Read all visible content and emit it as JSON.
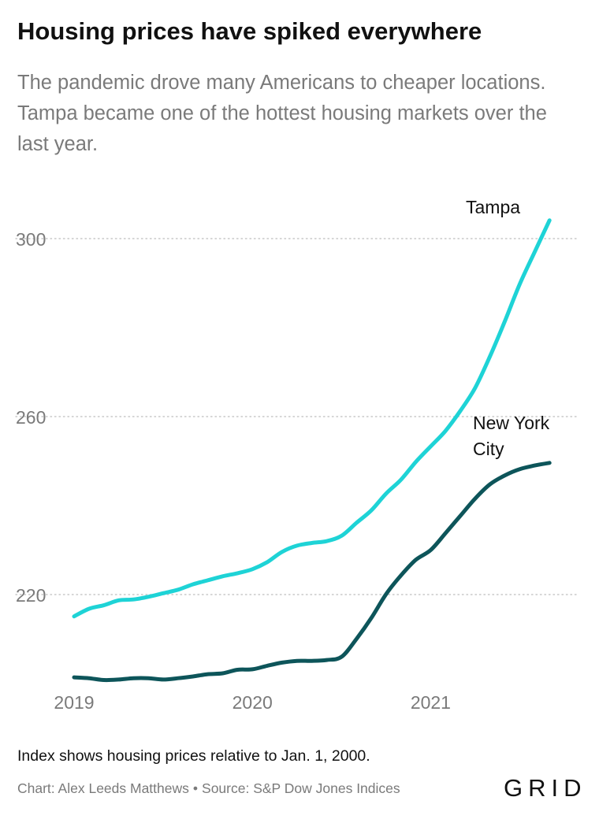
{
  "header": {
    "title": "Housing prices have spiked everywhere",
    "subtitle": "The pandemic drove many Americans to cheaper locations. Tampa became one of the hottest housing markets over the last year."
  },
  "footer": {
    "note": "Index shows housing prices relative to Jan. 1, 2000.",
    "chart_credit": "Chart: Alex Leeds Matthews",
    "separator": "•",
    "source": "Source: S&P Dow Jones Indices",
    "logo": "GRID"
  },
  "colors": {
    "tampa": "#1ed3d6",
    "new_york": "#0d555a",
    "grid": "#c8c8c8",
    "axis_text": "#7a7a7a"
  },
  "chart_data": {
    "type": "line",
    "x_ticks": [
      "2019",
      "2020",
      "2021"
    ],
    "y_ticks": [
      220,
      260,
      300
    ],
    "xlim": [
      "2019-01",
      "2021-11"
    ],
    "ylim": [
      200,
      310
    ],
    "grid": "horizontal dotted",
    "legend": "direct labels at line ends",
    "x": [
      "2019-01",
      "2019-02",
      "2019-03",
      "2019-04",
      "2019-05",
      "2019-06",
      "2019-07",
      "2019-08",
      "2019-09",
      "2019-10",
      "2019-11",
      "2019-12",
      "2020-01",
      "2020-02",
      "2020-03",
      "2020-04",
      "2020-05",
      "2020-06",
      "2020-07",
      "2020-08",
      "2020-09",
      "2020-10",
      "2020-11",
      "2020-12",
      "2021-01",
      "2021-02",
      "2021-03",
      "2021-04",
      "2021-05",
      "2021-06",
      "2021-07",
      "2021-08",
      "2021-09"
    ],
    "series": [
      {
        "name": "Tampa",
        "values": [
          215.1,
          216.8,
          217.6,
          218.7,
          218.9,
          219.5,
          220.3,
          221.1,
          222.3,
          223.2,
          224.1,
          224.8,
          225.7,
          227.3,
          229.6,
          231.0,
          231.6,
          232.0,
          233.2,
          236.1,
          238.9,
          242.7,
          245.8,
          249.8,
          253.3,
          256.8,
          261.3,
          266.5,
          273.6,
          281.5,
          289.8,
          297.0,
          304.1
        ]
      },
      {
        "name": "New York City",
        "values": [
          201.4,
          201.2,
          200.8,
          200.9,
          201.2,
          201.2,
          200.9,
          201.2,
          201.6,
          202.1,
          202.3,
          203.1,
          203.2,
          204.0,
          204.7,
          205.1,
          205.1,
          205.3,
          206.0,
          210.0,
          214.7,
          220.1,
          224.3,
          227.8,
          230.0,
          233.8,
          237.7,
          241.6,
          244.8,
          246.8,
          248.2,
          249.0,
          249.6
        ]
      }
    ]
  }
}
